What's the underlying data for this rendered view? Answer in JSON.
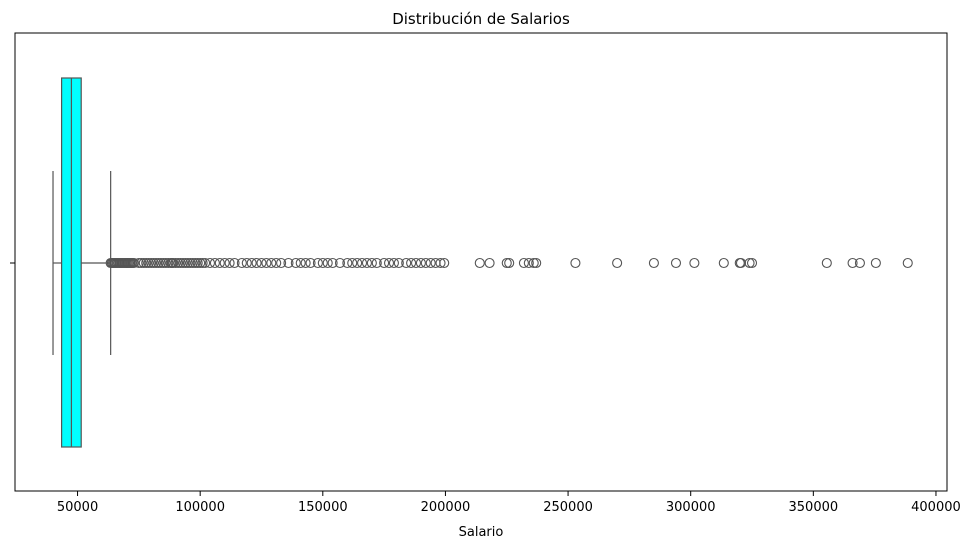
{
  "chart_data": {
    "type": "box",
    "title": "Distribución de Salarios",
    "xlabel": "Salario",
    "ylabel": "",
    "xlim": [
      24500,
      404500
    ],
    "xticks": [
      50000,
      100000,
      150000,
      200000,
      250000,
      300000,
      350000,
      400000
    ],
    "xtick_labels": [
      "50000",
      "100000",
      "150000",
      "200000",
      "250000",
      "300000",
      "350000",
      "400000"
    ],
    "grid": false,
    "box_color": "#00ffff",
    "edge_color": "#555555",
    "box": {
      "whisker_low": 40000,
      "q1": 43500,
      "median": 47500,
      "q3": 51500,
      "whisker_high": 63500
    },
    "outliers": [
      63500,
      64000,
      64500,
      65000,
      65500,
      66000,
      66500,
      67000,
      67500,
      68000,
      68500,
      69000,
      69500,
      70000,
      70500,
      71000,
      71500,
      72000,
      72500,
      73000,
      75000,
      76000,
      77000,
      78000,
      79000,
      80000,
      81000,
      82000,
      83000,
      84000,
      85000,
      86000,
      87000,
      88000,
      88500,
      89000,
      90000,
      91000,
      92000,
      93000,
      94000,
      95000,
      96000,
      97000,
      98000,
      99000,
      100000,
      101000,
      102000,
      104000,
      106000,
      108000,
      110000,
      112000,
      114000,
      117000,
      119000,
      121000,
      123000,
      125000,
      127000,
      129000,
      131000,
      133000,
      136000,
      139000,
      141000,
      143000,
      145000,
      148000,
      150000,
      152000,
      154000,
      157000,
      160000,
      162000,
      164000,
      166000,
      168000,
      170000,
      172000,
      175000,
      177000,
      179000,
      181000,
      184000,
      186000,
      188000,
      190000,
      192000,
      194000,
      196000,
      198000,
      199500,
      214000,
      218000,
      225000,
      226000,
      232000,
      234000,
      236000,
      237000,
      253000,
      270000,
      285000,
      294000,
      301500,
      313500,
      320000,
      320500,
      324000,
      325000,
      355500,
      366000,
      369000,
      375500,
      388500
    ]
  }
}
